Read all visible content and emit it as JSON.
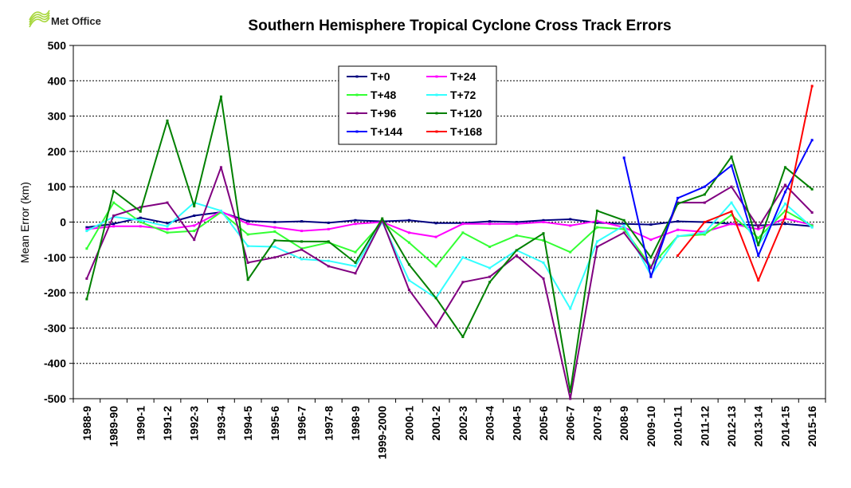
{
  "logo": {
    "text": "Met Office"
  },
  "chart_data": {
    "type": "line",
    "title": "Southern Hemisphere Tropical Cyclone Cross Track Errors",
    "xlabel": "",
    "ylabel": "Mean Error (km)",
    "ylim": [
      -500,
      500
    ],
    "yticks": [
      500,
      400,
      300,
      200,
      100,
      0,
      -100,
      -200,
      -300,
      -400,
      -500
    ],
    "grid": true,
    "legend_position": "top-center",
    "categories": [
      "1988-9",
      "1989-90",
      "1990-1",
      "1991-2",
      "1992-3",
      "1993-4",
      "1994-5",
      "1995-6",
      "1996-7",
      "1997-8",
      "1998-9",
      "1999-2000",
      "2000-1",
      "2001-2",
      "2002-3",
      "2003-4",
      "2004-5",
      "2005-6",
      "2006-7",
      "2007-8",
      "2008-9",
      "2009-10",
      "2010-11",
      "2011-12",
      "2012-13",
      "2013-14",
      "2014-15",
      "2015-16"
    ],
    "series": [
      {
        "name": "T+0",
        "color": "#000080",
        "values": [
          -15,
          -5,
          12,
          -3,
          18,
          28,
          3,
          0,
          2,
          -2,
          5,
          2,
          5,
          -3,
          -3,
          2,
          0,
          5,
          8,
          -2,
          -5,
          -7,
          2,
          0,
          -5,
          -10,
          -5,
          -12
        ]
      },
      {
        "name": "T+24",
        "color": "#ff00ff",
        "values": [
          -20,
          -12,
          -12,
          -20,
          -10,
          30,
          -5,
          -15,
          -25,
          -20,
          -5,
          0,
          -30,
          -42,
          -5,
          -5,
          -5,
          0,
          -10,
          3,
          -15,
          -50,
          -22,
          -28,
          -5,
          -20,
          10,
          -8
        ]
      },
      {
        "name": "T+48",
        "color": "#33ff33",
        "values": [
          -75,
          55,
          0,
          -30,
          -25,
          28,
          -35,
          -27,
          -75,
          -58,
          -85,
          0,
          -58,
          -125,
          -30,
          -70,
          -38,
          -52,
          -85,
          -15,
          -20,
          -125,
          -40,
          -35,
          20,
          -45,
          32,
          -10
        ]
      },
      {
        "name": "T+72",
        "color": "#33ffff",
        "values": [
          -25,
          15,
          5,
          -12,
          55,
          32,
          -68,
          -70,
          -105,
          -110,
          -125,
          0,
          -165,
          -215,
          -100,
          -130,
          -80,
          -115,
          -245,
          -55,
          -10,
          -150,
          -40,
          -30,
          55,
          -65,
          52,
          -15
        ]
      },
      {
        "name": "T+96",
        "color": "#800080",
        "values": [
          -160,
          18,
          42,
          55,
          -50,
          155,
          -115,
          -100,
          -78,
          -125,
          -145,
          5,
          -192,
          -295,
          -170,
          -155,
          -95,
          -160,
          -500,
          -70,
          -30,
          -130,
          55,
          55,
          100,
          -15,
          105,
          27
        ]
      },
      {
        "name": "T+120",
        "color": "#008000",
        "values": [
          -218,
          88,
          30,
          287,
          45,
          355,
          -163,
          -52,
          -55,
          -55,
          -115,
          10,
          -120,
          -215,
          -325,
          -170,
          -80,
          -32,
          -480,
          32,
          5,
          -100,
          52,
          78,
          185,
          -65,
          155,
          93
        ]
      },
      {
        "name": "T+144",
        "color": "#0000ff",
        "values": [
          null,
          null,
          null,
          null,
          null,
          null,
          null,
          null,
          null,
          null,
          null,
          null,
          null,
          null,
          null,
          null,
          null,
          null,
          null,
          null,
          182,
          -155,
          68,
          100,
          160,
          -95,
          85,
          232
        ]
      },
      {
        "name": "T+168",
        "color": "#ff0000",
        "values": [
          null,
          null,
          null,
          null,
          null,
          null,
          null,
          null,
          null,
          null,
          null,
          null,
          null,
          null,
          null,
          null,
          null,
          null,
          null,
          null,
          null,
          null,
          -95,
          0,
          30,
          -165,
          15,
          385
        ]
      }
    ]
  }
}
